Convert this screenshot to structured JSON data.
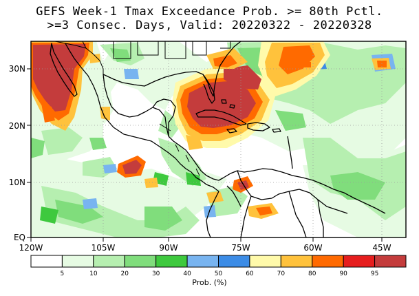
{
  "title_line1": "GEFS Week-1 Tmax Exceedance Prob. >= 80th Pctl.",
  "title_line2": ">=3 Consec. Days, Valid: 20220322 - 20220328",
  "lat_labels": [
    "30N",
    "20N",
    "10N",
    "EQ"
  ],
  "lon_labels": [
    "120W",
    "105W",
    "90W",
    "75W",
    "60W",
    "45W"
  ],
  "colorbar": {
    "label": "Prob. (%)",
    "ticks": [
      "5",
      "10",
      "20",
      "30",
      "40",
      "50",
      "60",
      "70",
      "80",
      "90",
      "95"
    ],
    "colors": [
      "#ffffff",
      "#e6fbe3",
      "#b6efb0",
      "#80dd7c",
      "#3ec93e",
      "#78b4f0",
      "#3c8ce6",
      "#fffaaa",
      "#ffc23c",
      "#ff6a00",
      "#e61e1e",
      "#c43c3c"
    ]
  }
}
